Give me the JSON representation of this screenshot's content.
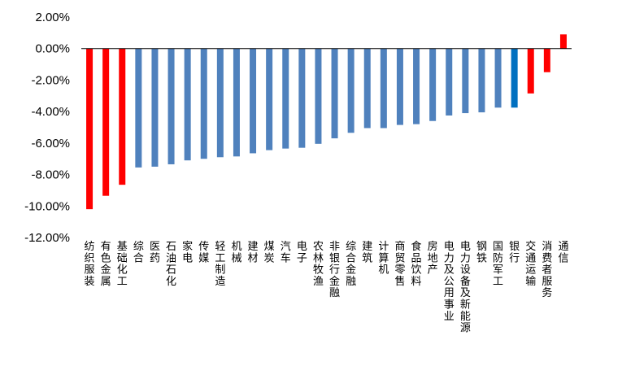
{
  "chart_data": {
    "type": "bar",
    "title": "",
    "xlabel": "",
    "ylabel": "",
    "ylim": [
      -12,
      2
    ],
    "yticks": [
      2,
      0,
      -2,
      -4,
      -6,
      -8,
      -10,
      -12
    ],
    "ytick_labels": [
      "2.00%",
      "0.00%",
      "-2.00%",
      "-4.00%",
      "-6.00%",
      "-8.00%",
      "-10.00%",
      "-12.00%"
    ],
    "grid": false,
    "legend": "none",
    "colors": {
      "default": "#4f81bd",
      "highlight_red": "#ff0000",
      "highlight_blue": "#0070c0"
    },
    "categories": [
      "纺织服装",
      "有色金属",
      "基础化工",
      "综合",
      "医药",
      "石油石化",
      "家电",
      "传媒",
      "轻工制造",
      "机械",
      "建材",
      "煤炭",
      "汽车",
      "电子",
      "农林牧渔",
      "非银行金融",
      "综合金融",
      "建筑",
      "计算机",
      "商贸零售",
      "食品饮料",
      "房地产",
      "电力及公用事业",
      "电力设备及新能源",
      "钢铁",
      "国防军工",
      "银行",
      "交通运输",
      "消费者服务",
      "通信"
    ],
    "values": [
      -10.2,
      -9.35,
      -8.65,
      -7.55,
      -7.5,
      -7.35,
      -7.1,
      -7.0,
      -6.9,
      -6.85,
      -6.65,
      -6.45,
      -6.35,
      -6.3,
      -6.05,
      -5.7,
      -5.35,
      -5.05,
      -5.05,
      -4.85,
      -4.8,
      -4.6,
      -4.25,
      -4.1,
      -4.05,
      -3.75,
      -3.75,
      -2.85,
      -1.5,
      0.9
    ],
    "bar_colors": [
      "#ff0000",
      "#ff0000",
      "#ff0000",
      "#4f81bd",
      "#4f81bd",
      "#4f81bd",
      "#4f81bd",
      "#4f81bd",
      "#4f81bd",
      "#4f81bd",
      "#4f81bd",
      "#4f81bd",
      "#4f81bd",
      "#4f81bd",
      "#4f81bd",
      "#4f81bd",
      "#4f81bd",
      "#4f81bd",
      "#4f81bd",
      "#4f81bd",
      "#4f81bd",
      "#4f81bd",
      "#4f81bd",
      "#4f81bd",
      "#4f81bd",
      "#4f81bd",
      "#0070c0",
      "#ff0000",
      "#ff0000",
      "#ff0000"
    ]
  }
}
